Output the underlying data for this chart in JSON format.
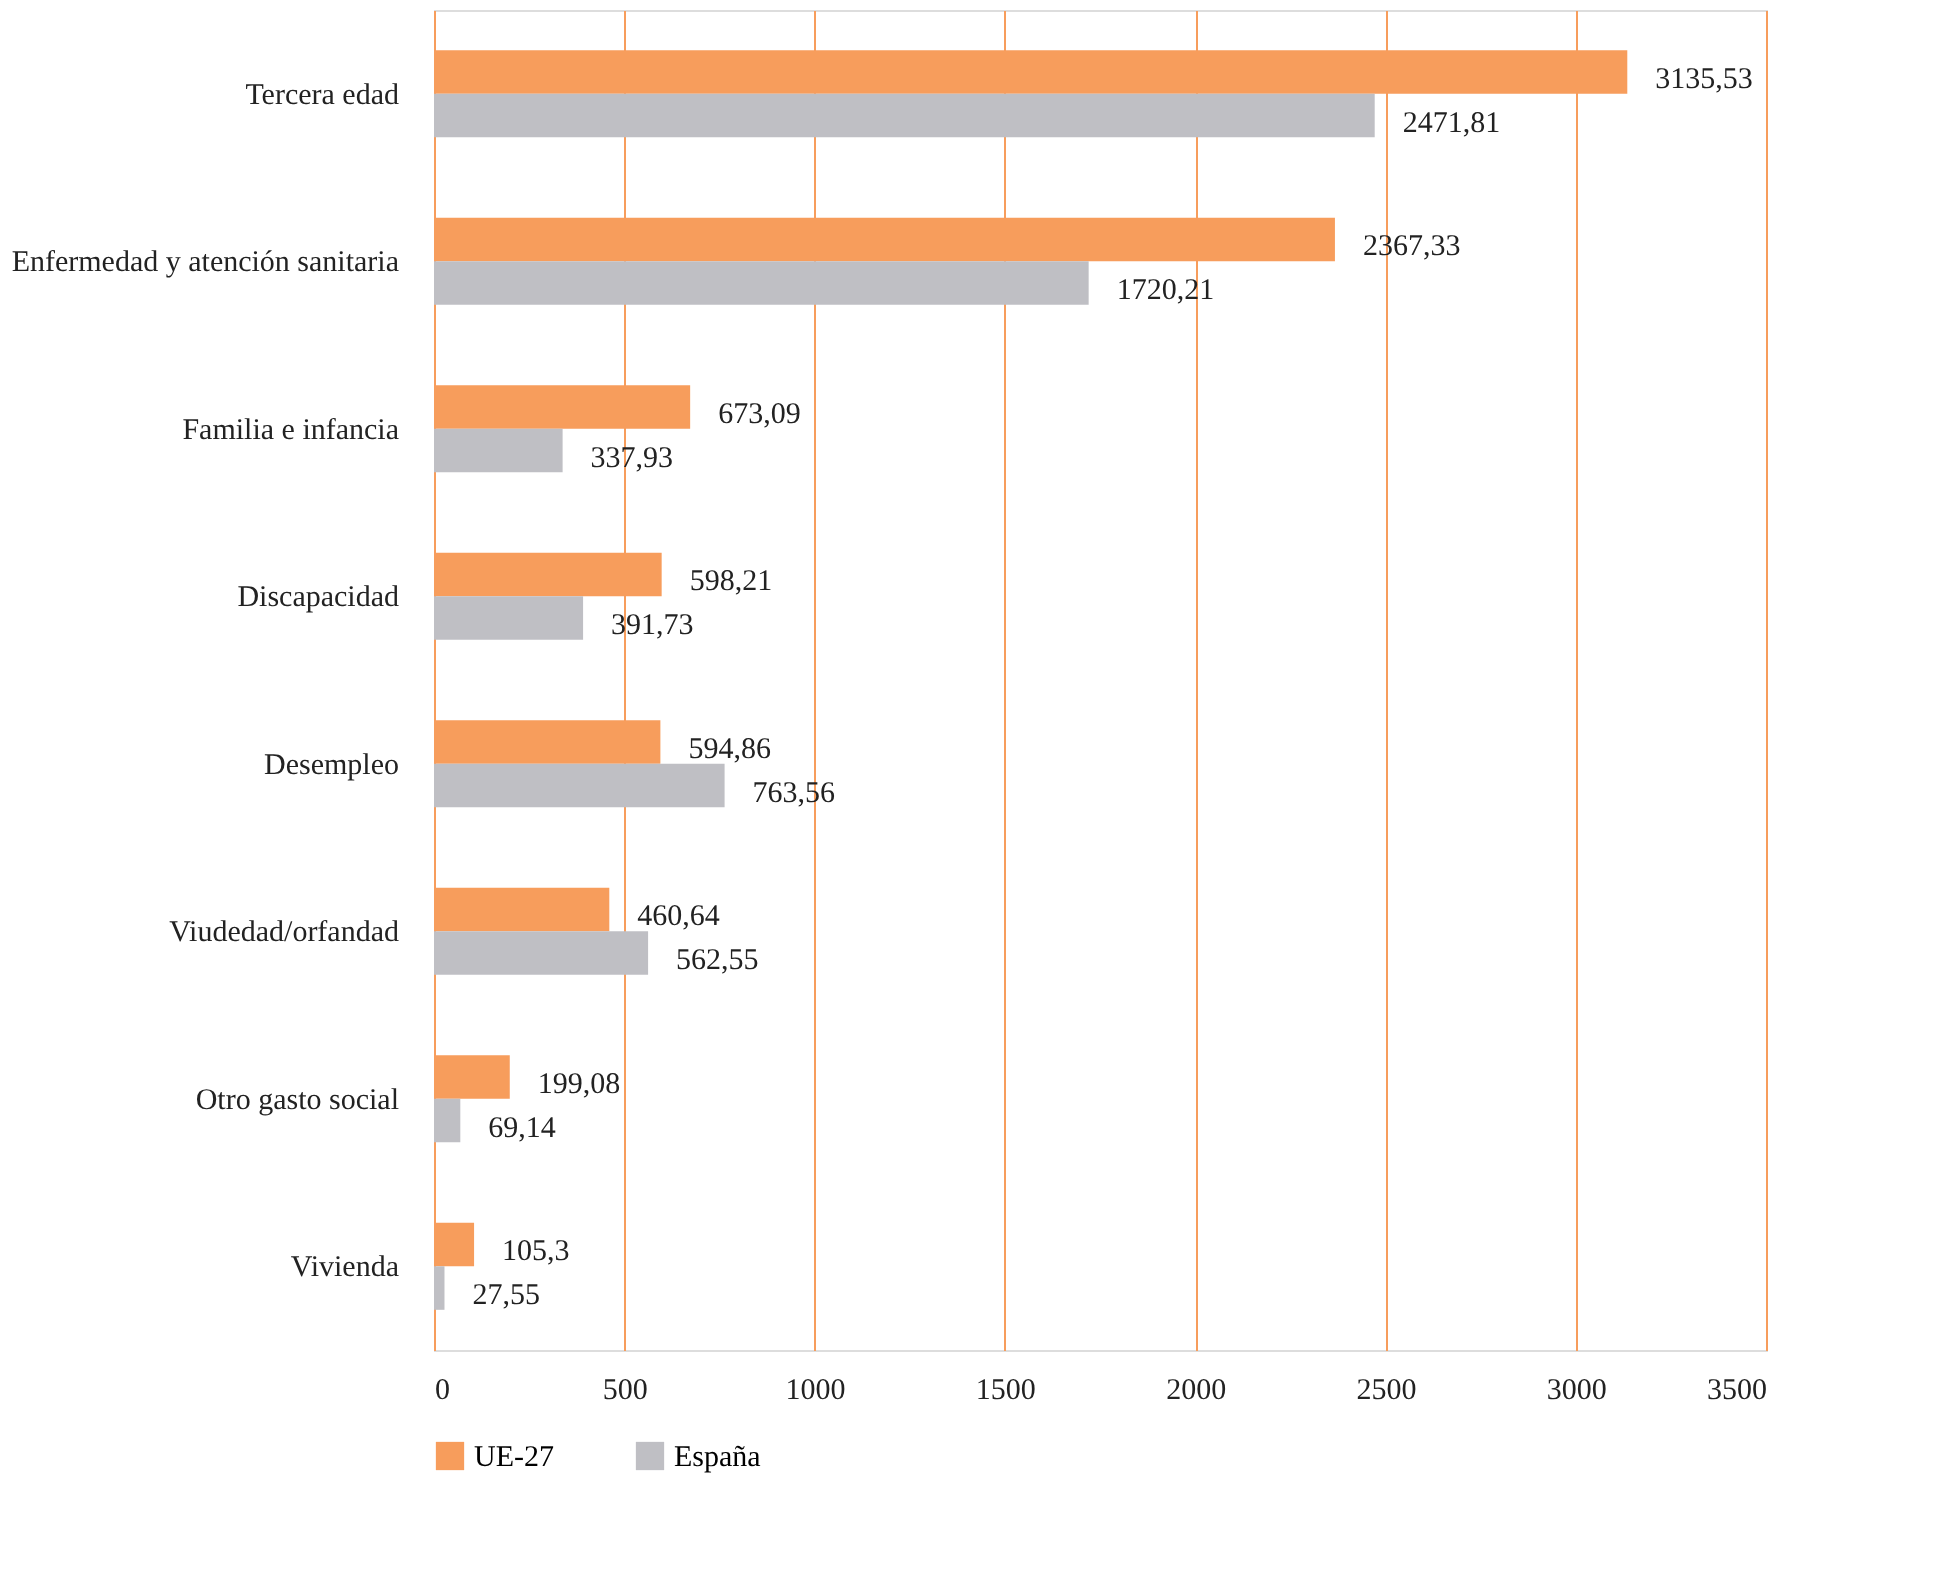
{
  "chart_data": {
    "type": "bar",
    "orientation": "horizontal",
    "categories": [
      "Tercera edad",
      "Enfermedad y atención sanitaria",
      "Familia e infancia",
      "Discapacidad",
      "Desempleo",
      "Viudedad/orfandad",
      "Otro gasto social",
      "Vivienda"
    ],
    "series": [
      {
        "name": "UE-27",
        "color": "#f79d5c",
        "values": [
          3135.53,
          2367.33,
          673.09,
          598.21,
          594.86,
          460.64,
          199.08,
          105.3
        ],
        "value_labels": [
          "3135,53",
          "2367,33",
          "673,09",
          "598,21",
          "594,86",
          "460,64",
          "199,08",
          "105,3"
        ]
      },
      {
        "name": "España",
        "color": "#bfbfc4",
        "values": [
          2471.81,
          1720.21,
          337.93,
          391.73,
          763.56,
          562.55,
          69.14,
          27.55
        ],
        "value_labels": [
          "2471,81",
          "1720,21",
          "337,93",
          "391,73",
          "763,56",
          "562,55",
          "69,14",
          "27,55"
        ]
      }
    ],
    "xlim": [
      0,
      3500
    ],
    "xticks": [
      0,
      500,
      1000,
      1500,
      2000,
      2500,
      3000,
      3500
    ],
    "grid": "x",
    "legend": "bottom"
  }
}
